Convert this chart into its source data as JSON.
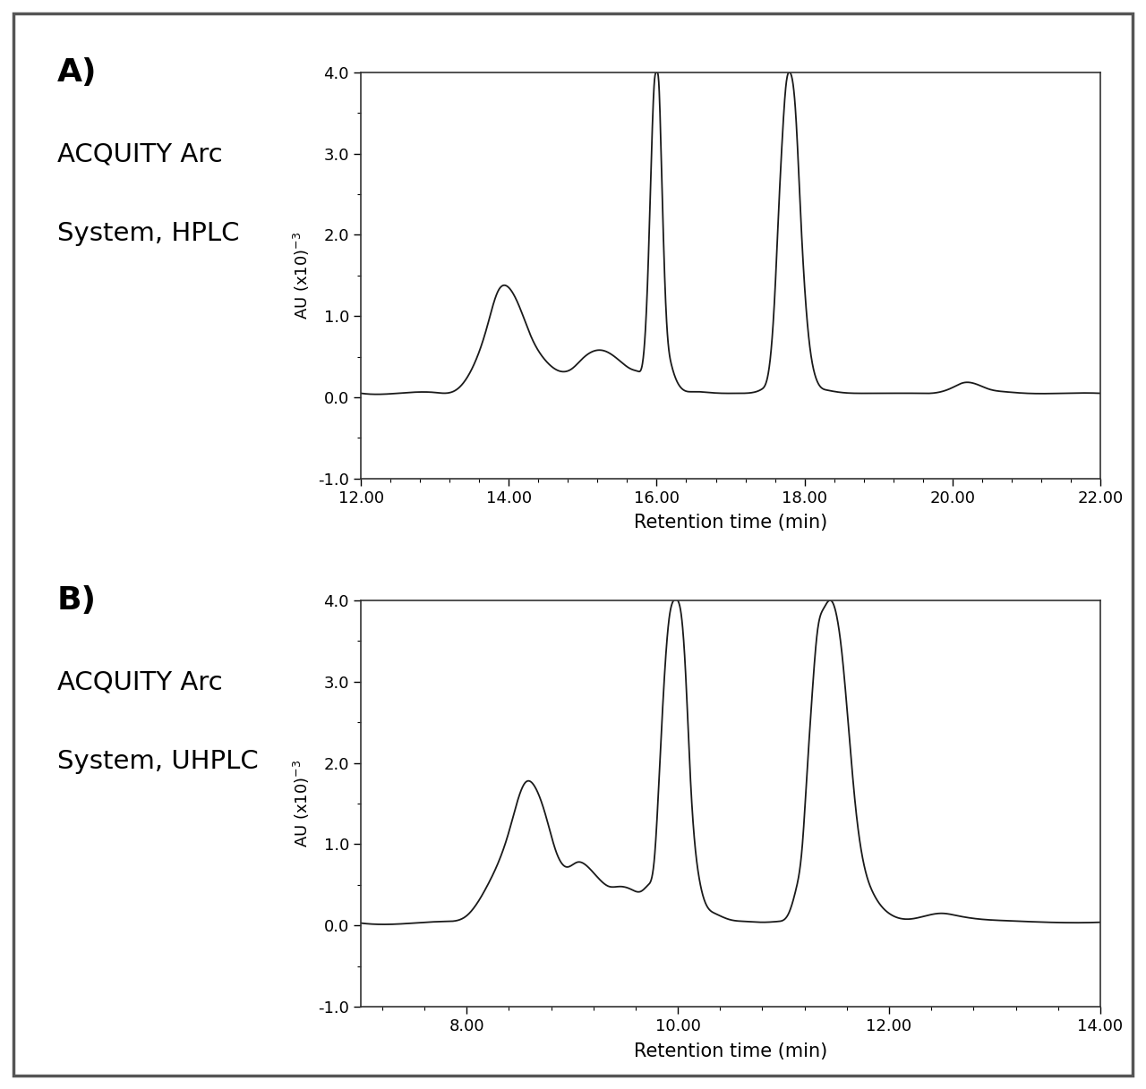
{
  "panel_A": {
    "label": "A)",
    "subtitle_line1": "ACQUITY Arc",
    "subtitle_line2": "System, HPLC",
    "xmin": 12.0,
    "xmax": 22.0,
    "xticks": [
      12.0,
      14.0,
      16.0,
      18.0,
      20.0,
      22.0
    ],
    "ymin": -1.0,
    "ymax": 4.0,
    "yticks": [
      -1.0,
      0.0,
      1.0,
      2.0,
      3.0,
      4.0
    ],
    "xlabel": "Retention time (min)",
    "ylabel": "AU (x10)$^{-3}$",
    "peaks": {
      "x": [
        12.0,
        12.5,
        13.0,
        13.3,
        13.5,
        13.7,
        13.85,
        14.0,
        14.15,
        14.3,
        14.5,
        14.7,
        14.85,
        15.0,
        15.15,
        15.3,
        15.5,
        15.65,
        15.75,
        15.82,
        15.88,
        15.93,
        15.97,
        16.0,
        16.03,
        16.06,
        16.12,
        16.2,
        16.35,
        16.5,
        16.7,
        16.9,
        17.1,
        17.3,
        17.42,
        17.5,
        17.55,
        17.6,
        17.65,
        17.7,
        17.75,
        17.8,
        17.88,
        17.95,
        18.05,
        18.15,
        18.3,
        18.5,
        18.7,
        18.9,
        19.1,
        19.5,
        19.8,
        20.0,
        20.15,
        20.3,
        20.5,
        20.7,
        21.0,
        21.5,
        22.0
      ],
      "y": [
        0.05,
        0.05,
        0.06,
        0.1,
        0.35,
        0.85,
        1.3,
        1.35,
        1.1,
        0.75,
        0.45,
        0.32,
        0.35,
        0.48,
        0.57,
        0.57,
        0.45,
        0.35,
        0.32,
        0.5,
        1.5,
        3.0,
        3.9,
        4.0,
        3.85,
        3.0,
        1.2,
        0.4,
        0.1,
        0.07,
        0.06,
        0.05,
        0.05,
        0.06,
        0.1,
        0.25,
        0.6,
        1.3,
        2.3,
        3.2,
        3.85,
        4.0,
        3.5,
        2.2,
        0.8,
        0.25,
        0.09,
        0.06,
        0.05,
        0.05,
        0.05,
        0.05,
        0.06,
        0.12,
        0.18,
        0.17,
        0.1,
        0.07,
        0.05,
        0.05,
        0.05
      ]
    }
  },
  "panel_B": {
    "label": "B)",
    "subtitle_line1": "ACQUITY Arc",
    "subtitle_line2": "System, UHPLC",
    "xmin": 7.0,
    "xmax": 14.0,
    "xticks": [
      8.0,
      10.0,
      12.0,
      14.0
    ],
    "xticklabels": [
      "8.00",
      "10.00",
      "12.00",
      "14.00"
    ],
    "ymin": -1.0,
    "ymax": 4.0,
    "yticks": [
      -1.0,
      0.0,
      1.0,
      2.0,
      3.0,
      4.0
    ],
    "xlabel": "Retention time (min)",
    "ylabel": "AU (x10)$^{-3}$",
    "peaks": {
      "x": [
        7.0,
        7.5,
        7.8,
        8.0,
        8.2,
        8.4,
        8.55,
        8.65,
        8.75,
        8.85,
        8.95,
        9.05,
        9.15,
        9.25,
        9.35,
        9.45,
        9.55,
        9.65,
        9.72,
        9.78,
        9.83,
        9.88,
        9.92,
        9.96,
        10.0,
        10.03,
        10.07,
        10.12,
        10.2,
        10.35,
        10.5,
        10.65,
        10.8,
        10.95,
        11.05,
        11.12,
        11.18,
        11.22,
        11.27,
        11.32,
        11.38,
        11.45,
        11.55,
        11.68,
        11.85,
        12.0,
        12.2,
        12.35,
        12.5,
        12.65,
        12.85,
        13.1,
        13.5,
        14.0
      ],
      "y": [
        0.03,
        0.03,
        0.05,
        0.12,
        0.5,
        1.15,
        1.75,
        1.7,
        1.35,
        0.9,
        0.72,
        0.78,
        0.72,
        0.58,
        0.48,
        0.48,
        0.45,
        0.42,
        0.5,
        0.85,
        2.0,
        3.2,
        3.8,
        4.0,
        4.0,
        3.85,
        3.2,
        1.8,
        0.6,
        0.15,
        0.07,
        0.05,
        0.04,
        0.05,
        0.15,
        0.45,
        1.0,
        1.8,
        2.8,
        3.6,
        3.9,
        4.0,
        3.4,
        1.5,
        0.4,
        0.15,
        0.08,
        0.12,
        0.15,
        0.12,
        0.08,
        0.06,
        0.04,
        0.04
      ]
    }
  },
  "figure_bg": "#ffffff",
  "plot_bg": "#ffffff",
  "line_color": "#1a1a1a",
  "border_color": "#555555"
}
